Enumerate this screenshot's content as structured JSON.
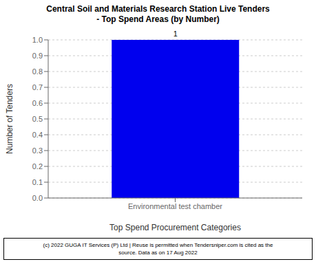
{
  "chart_data": {
    "type": "bar",
    "title": "Central Soil and Materials Research Station Live Tenders",
    "subtitle": "- Top Spend Areas (by Number)",
    "categories": [
      "Environmental test chamber"
    ],
    "values": [
      1
    ],
    "color": "#0000EE",
    "xlabel": "Top Spend Procurement Categories",
    "ylabel": "Number of Tenders",
    "ylim": [
      0,
      1
    ],
    "yticks": [
      {
        "value": 0,
        "label": "0.0"
      },
      0.1,
      0.2,
      0.3,
      0.4,
      0.5,
      0.6,
      0.7,
      0.8,
      0.9,
      {
        "value": 1,
        "label": "1.0"
      }
    ],
    "grid": true,
    "data_labels": true,
    "annotations": [
      "(c) 2022 GUGA IT Services (P) Ltd | Reuse is permitted when Tendersniper.com is cited as the\nsource. Data as on 17 Aug 2022"
    ]
  }
}
